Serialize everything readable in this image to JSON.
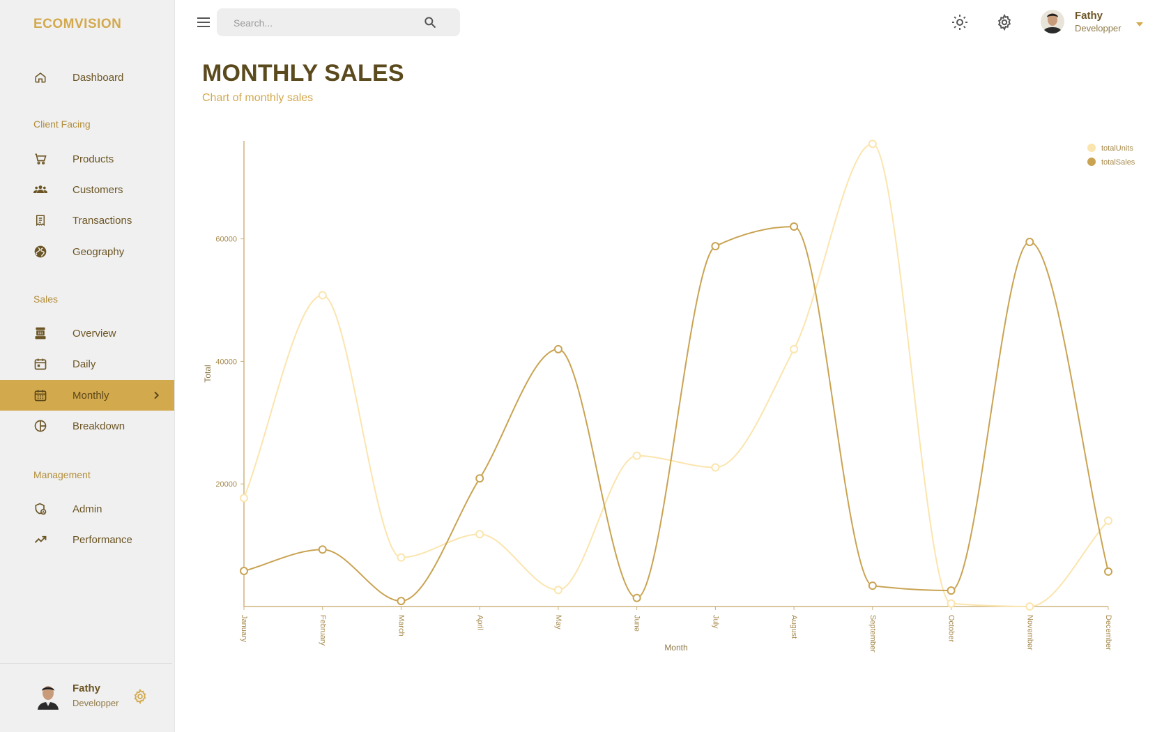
{
  "sidebar": {
    "brand": "ECOMVISION",
    "sections": {
      "client_facing": "Client Facing",
      "sales": "Sales",
      "management": "Management"
    },
    "items": {
      "dashboard": "Dashboard",
      "products": "Products",
      "customers": "Customers",
      "transactions": "Transactions",
      "geography": "Geography",
      "overview": "Overview",
      "daily": "Daily",
      "monthly": "Monthly",
      "breakdown": "Breakdown",
      "admin": "Admin",
      "performance": "Performance"
    },
    "active_item": "Monthly",
    "user": {
      "name": "Fathy",
      "role": "Developper"
    }
  },
  "topbar": {
    "search_placeholder": "Search...",
    "user": {
      "name": "Fathy",
      "role": "Developper"
    }
  },
  "header": {
    "title": "MONTHLY SALES",
    "subtitle": "Chart of monthly sales"
  },
  "colors": {
    "accent": "#d3a94e",
    "totalUnits": "#fbe5ae",
    "totalSales": "#c9a352"
  },
  "chart_data": {
    "type": "line",
    "xlabel": "Month",
    "ylabel": "Total",
    "categories": [
      "January",
      "February",
      "March",
      "April",
      "May",
      "June",
      "July",
      "August",
      "September",
      "October",
      "November",
      "December"
    ],
    "ylim": [
      0,
      76000
    ],
    "yticks": [
      20000,
      40000,
      60000
    ],
    "legend_position": "top-right",
    "grid": false,
    "curve": "smooth",
    "series": [
      {
        "name": "totalUnits",
        "values": [
          17700,
          50800,
          8000,
          11800,
          2700,
          24600,
          22700,
          42000,
          75500,
          500,
          0,
          14000
        ]
      },
      {
        "name": "totalSales",
        "values": [
          5800,
          9300,
          900,
          20900,
          42000,
          1400,
          58800,
          62000,
          3400,
          2600,
          59500,
          5700
        ]
      }
    ]
  }
}
